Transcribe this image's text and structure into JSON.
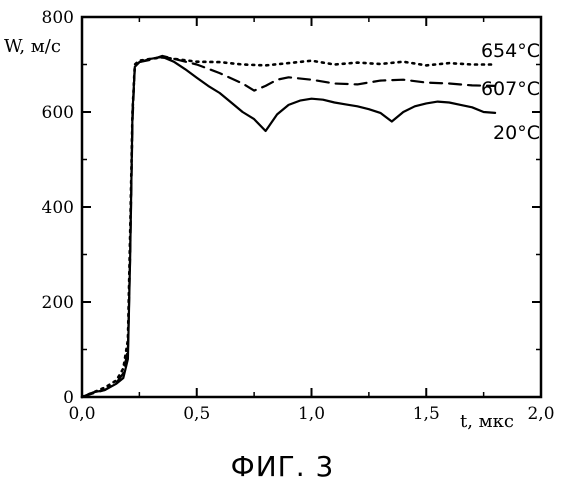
{
  "caption": "ФИГ. 3",
  "chart_data": {
    "type": "line",
    "title": "",
    "xlabel": "t, мкс",
    "ylabel": "W, м/с",
    "xlim": [
      0,
      2.0
    ],
    "ylim": [
      0,
      800
    ],
    "x_ticks": [
      0,
      0.5,
      1.0,
      1.5,
      2.0
    ],
    "x_tick_labels": [
      "0,0",
      "0,5",
      "1,0",
      "1,5",
      "2,0"
    ],
    "y_ticks": [
      0,
      200,
      400,
      600,
      800
    ],
    "y_tick_labels": [
      "0",
      "200",
      "400",
      "600",
      "800"
    ],
    "grid": false,
    "series": [
      {
        "name": "654°C",
        "style": "dotted",
        "x": [
          0,
          0.05,
          0.1,
          0.15,
          0.18,
          0.2,
          0.21,
          0.22,
          0.23,
          0.25,
          0.3,
          0.35,
          0.4,
          0.5,
          0.6,
          0.7,
          0.8,
          0.9,
          1.0,
          1.1,
          1.2,
          1.3,
          1.4,
          1.5,
          1.6,
          1.7,
          1.8
        ],
        "y": [
          0,
          10,
          20,
          35,
          60,
          120,
          350,
          600,
          700,
          708,
          712,
          715,
          712,
          706,
          705,
          700,
          698,
          703,
          708,
          700,
          704,
          701,
          706,
          698,
          703,
          700,
          700
        ]
      },
      {
        "name": "607°C",
        "style": "dashed",
        "x": [
          0,
          0.05,
          0.1,
          0.15,
          0.18,
          0.2,
          0.21,
          0.22,
          0.23,
          0.25,
          0.3,
          0.35,
          0.4,
          0.5,
          0.6,
          0.7,
          0.75,
          0.8,
          0.85,
          0.9,
          1.0,
          1.1,
          1.2,
          1.3,
          1.4,
          1.5,
          1.6,
          1.7,
          1.8
        ],
        "y": [
          0,
          8,
          15,
          30,
          50,
          100,
          300,
          580,
          695,
          705,
          710,
          718,
          712,
          700,
          682,
          660,
          645,
          655,
          668,
          673,
          668,
          660,
          658,
          666,
          668,
          662,
          660,
          656,
          655
        ]
      },
      {
        "name": "20°C",
        "style": "solid",
        "x": [
          0,
          0.05,
          0.1,
          0.15,
          0.18,
          0.2,
          0.21,
          0.22,
          0.23,
          0.25,
          0.3,
          0.35,
          0.4,
          0.45,
          0.5,
          0.55,
          0.6,
          0.65,
          0.7,
          0.75,
          0.8,
          0.85,
          0.9,
          0.95,
          1.0,
          1.05,
          1.1,
          1.15,
          1.2,
          1.25,
          1.3,
          1.35,
          1.4,
          1.45,
          1.5,
          1.55,
          1.6,
          1.65,
          1.7,
          1.75,
          1.8
        ],
        "y": [
          0,
          10,
          15,
          28,
          40,
          80,
          300,
          600,
          695,
          705,
          712,
          716,
          706,
          690,
          672,
          655,
          640,
          620,
          600,
          585,
          560,
          595,
          615,
          624,
          628,
          626,
          620,
          616,
          612,
          606,
          598,
          580,
          600,
          612,
          618,
          622,
          620,
          615,
          610,
          600,
          598
        ]
      }
    ]
  }
}
